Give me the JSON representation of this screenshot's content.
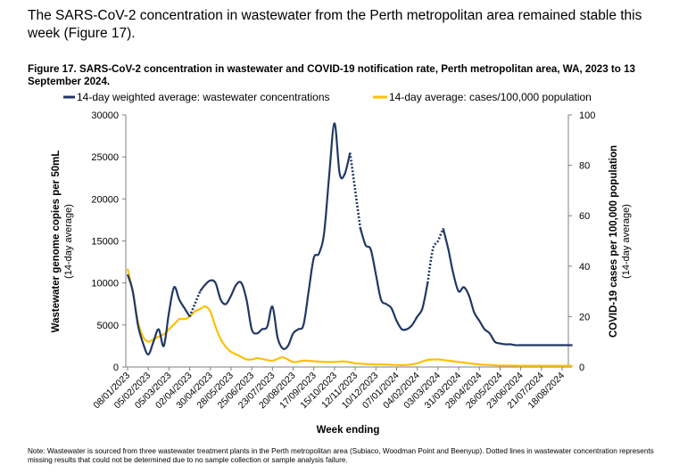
{
  "intro_text": "The SARS-CoV-2 concentration in wastewater from the Perth metropolitan area remained stable this week (Figure 17).",
  "figure_title": "Figure 17. SARS-CoV-2 concentration in wastewater and COVID-19 notification rate, Perth metropolitan area, WA, 2023 to 13 September 2024.",
  "note": "Note: Wastewater is sourced from three wastewater treatment plants in the Perth metropolitan area (Subiaco, Woodman Point and Beenyup). Dotted lines in wastewater concentration represents missing results that could not be determined due to no sample collection or sample analysis failure.",
  "colors": {
    "wastewater": "#1F3864",
    "cases": "#FFC000",
    "axis": "#7f7f7f"
  },
  "chart_data": {
    "type": "line",
    "xlabel": "Week ending",
    "ylabel_left": "Wastewater genome copies per 50mL",
    "ylabel_left_sub": "(14-day average)",
    "ylabel_right": "COVID-19 cases per 100,000 population",
    "ylabel_right_sub": "(14-day average)",
    "ylim_left": [
      0,
      30000
    ],
    "ylim_right": [
      0,
      100
    ],
    "yticks_left": [
      "0",
      "5000",
      "10000",
      "15000",
      "20000",
      "25000",
      "30000"
    ],
    "yticks_right": [
      "0",
      "20",
      "40",
      "60",
      "80",
      "100"
    ],
    "xtick_labels": [
      "08/01/2023",
      "05/02/2023",
      "05/03/2023",
      "02/04/2023",
      "30/04/2023",
      "28/05/2023",
      "25/06/2023",
      "23/07/2023",
      "20/08/2023",
      "17/09/2023",
      "15/10/2023",
      "12/11/2023",
      "10/12/2023",
      "07/01/2024",
      "04/02/2024",
      "03/03/2024",
      "31/03/2024",
      "28/04/2024",
      "26/05/2024",
      "23/06/2024",
      "21/07/2024",
      "18/08/2024"
    ],
    "legend": [
      "14-day weighted average: wastewater concentrations",
      "14-day average: cases/100,000 population"
    ],
    "series": [
      {
        "name": "14-day weighted average: wastewater concentrations",
        "axis": "left",
        "x": [
          0,
          0.25,
          0.5,
          0.75,
          1,
          1.25,
          1.5,
          1.75,
          2,
          2.25,
          2.5,
          2.75,
          3,
          3.25,
          3.5,
          3.75,
          4,
          4.25,
          4.5,
          4.75,
          5,
          5.25,
          5.5,
          5.75,
          6,
          6.25,
          6.5,
          6.75,
          7,
          7.25,
          7.5,
          7.75,
          8,
          8.25,
          8.5,
          8.75,
          9,
          9.25,
          9.5,
          9.75,
          10,
          10.25,
          10.5,
          10.75,
          11,
          11.25,
          11.5,
          11.75,
          12,
          12.25,
          12.5,
          12.75,
          13,
          13.25,
          13.5,
          13.75,
          14,
          14.25,
          14.5,
          14.75,
          15,
          15.25,
          15.5,
          15.75,
          16,
          16.25,
          16.5,
          16.75,
          17,
          17.25,
          17.5,
          17.75,
          18,
          18.25,
          18.5,
          18.75,
          19,
          19.25,
          19.5,
          19.75,
          20,
          20.25,
          20.5,
          20.75,
          21,
          21.25,
          21.5
        ],
        "values": [
          11000,
          9000,
          5000,
          2800,
          1500,
          3000,
          4500,
          2500,
          6500,
          9500,
          8000,
          7000,
          6000,
          7500,
          9000,
          9800,
          10300,
          10000,
          8000,
          7500,
          8500,
          9800,
          10000,
          8000,
          4500,
          4000,
          4500,
          4800,
          7200,
          3500,
          2200,
          2500,
          4000,
          4500,
          5000,
          9000,
          13000,
          13500,
          16000,
          23000,
          29000,
          23000,
          23000,
          25500,
          21000,
          16500,
          14500,
          14000,
          11000,
          8000,
          7500,
          7000,
          5500,
          4500,
          4500,
          5000,
          6000,
          7000,
          10000,
          14000,
          15000,
          16500,
          14000,
          11000,
          9000,
          9500,
          8500,
          6500,
          5500,
          4500,
          4000,
          3000,
          2800,
          2700,
          2700,
          2600,
          2600,
          2600,
          2600,
          2600,
          2600,
          2600,
          2600,
          2600,
          2600,
          2600,
          2600
        ],
        "dashed_ranges": [
          [
            3.0,
            3.5
          ],
          [
            10.75,
            11.25
          ],
          [
            14.5,
            15.25
          ]
        ]
      },
      {
        "name": "14-day average: cases/100,000 population",
        "axis": "right",
        "x": [
          0,
          0.25,
          0.5,
          0.75,
          1,
          1.25,
          1.5,
          1.75,
          2,
          2.25,
          2.5,
          2.75,
          3,
          3.25,
          3.5,
          3.75,
          4,
          4.25,
          4.5,
          4.75,
          5,
          5.25,
          5.5,
          5.75,
          6,
          6.25,
          6.5,
          7,
          7.5,
          8,
          8.5,
          9,
          9.5,
          10,
          10.5,
          11,
          11.5,
          12,
          12.5,
          13,
          13.5,
          14,
          14.5,
          15,
          15.5,
          16,
          16.5,
          17,
          17.5,
          18,
          18.5,
          19,
          19.5,
          20,
          20.5,
          21,
          21.5
        ],
        "values": [
          39,
          30,
          18,
          12,
          10,
          11,
          12,
          13,
          15,
          17,
          19,
          19,
          20,
          22,
          23,
          24,
          22,
          16,
          11,
          8,
          6,
          5,
          4,
          3,
          3,
          3.5,
          3.2,
          2.5,
          3.8,
          2.0,
          2.5,
          2.3,
          2.0,
          2.0,
          2.2,
          1.5,
          1.2,
          1.0,
          1.0,
          0.8,
          0.8,
          1.5,
          2.8,
          3.0,
          2.5,
          2.0,
          1.5,
          1.0,
          0.8,
          0.6,
          0.6,
          0.5,
          0.5,
          0.5,
          0.5,
          0.5,
          0.5
        ]
      }
    ]
  }
}
